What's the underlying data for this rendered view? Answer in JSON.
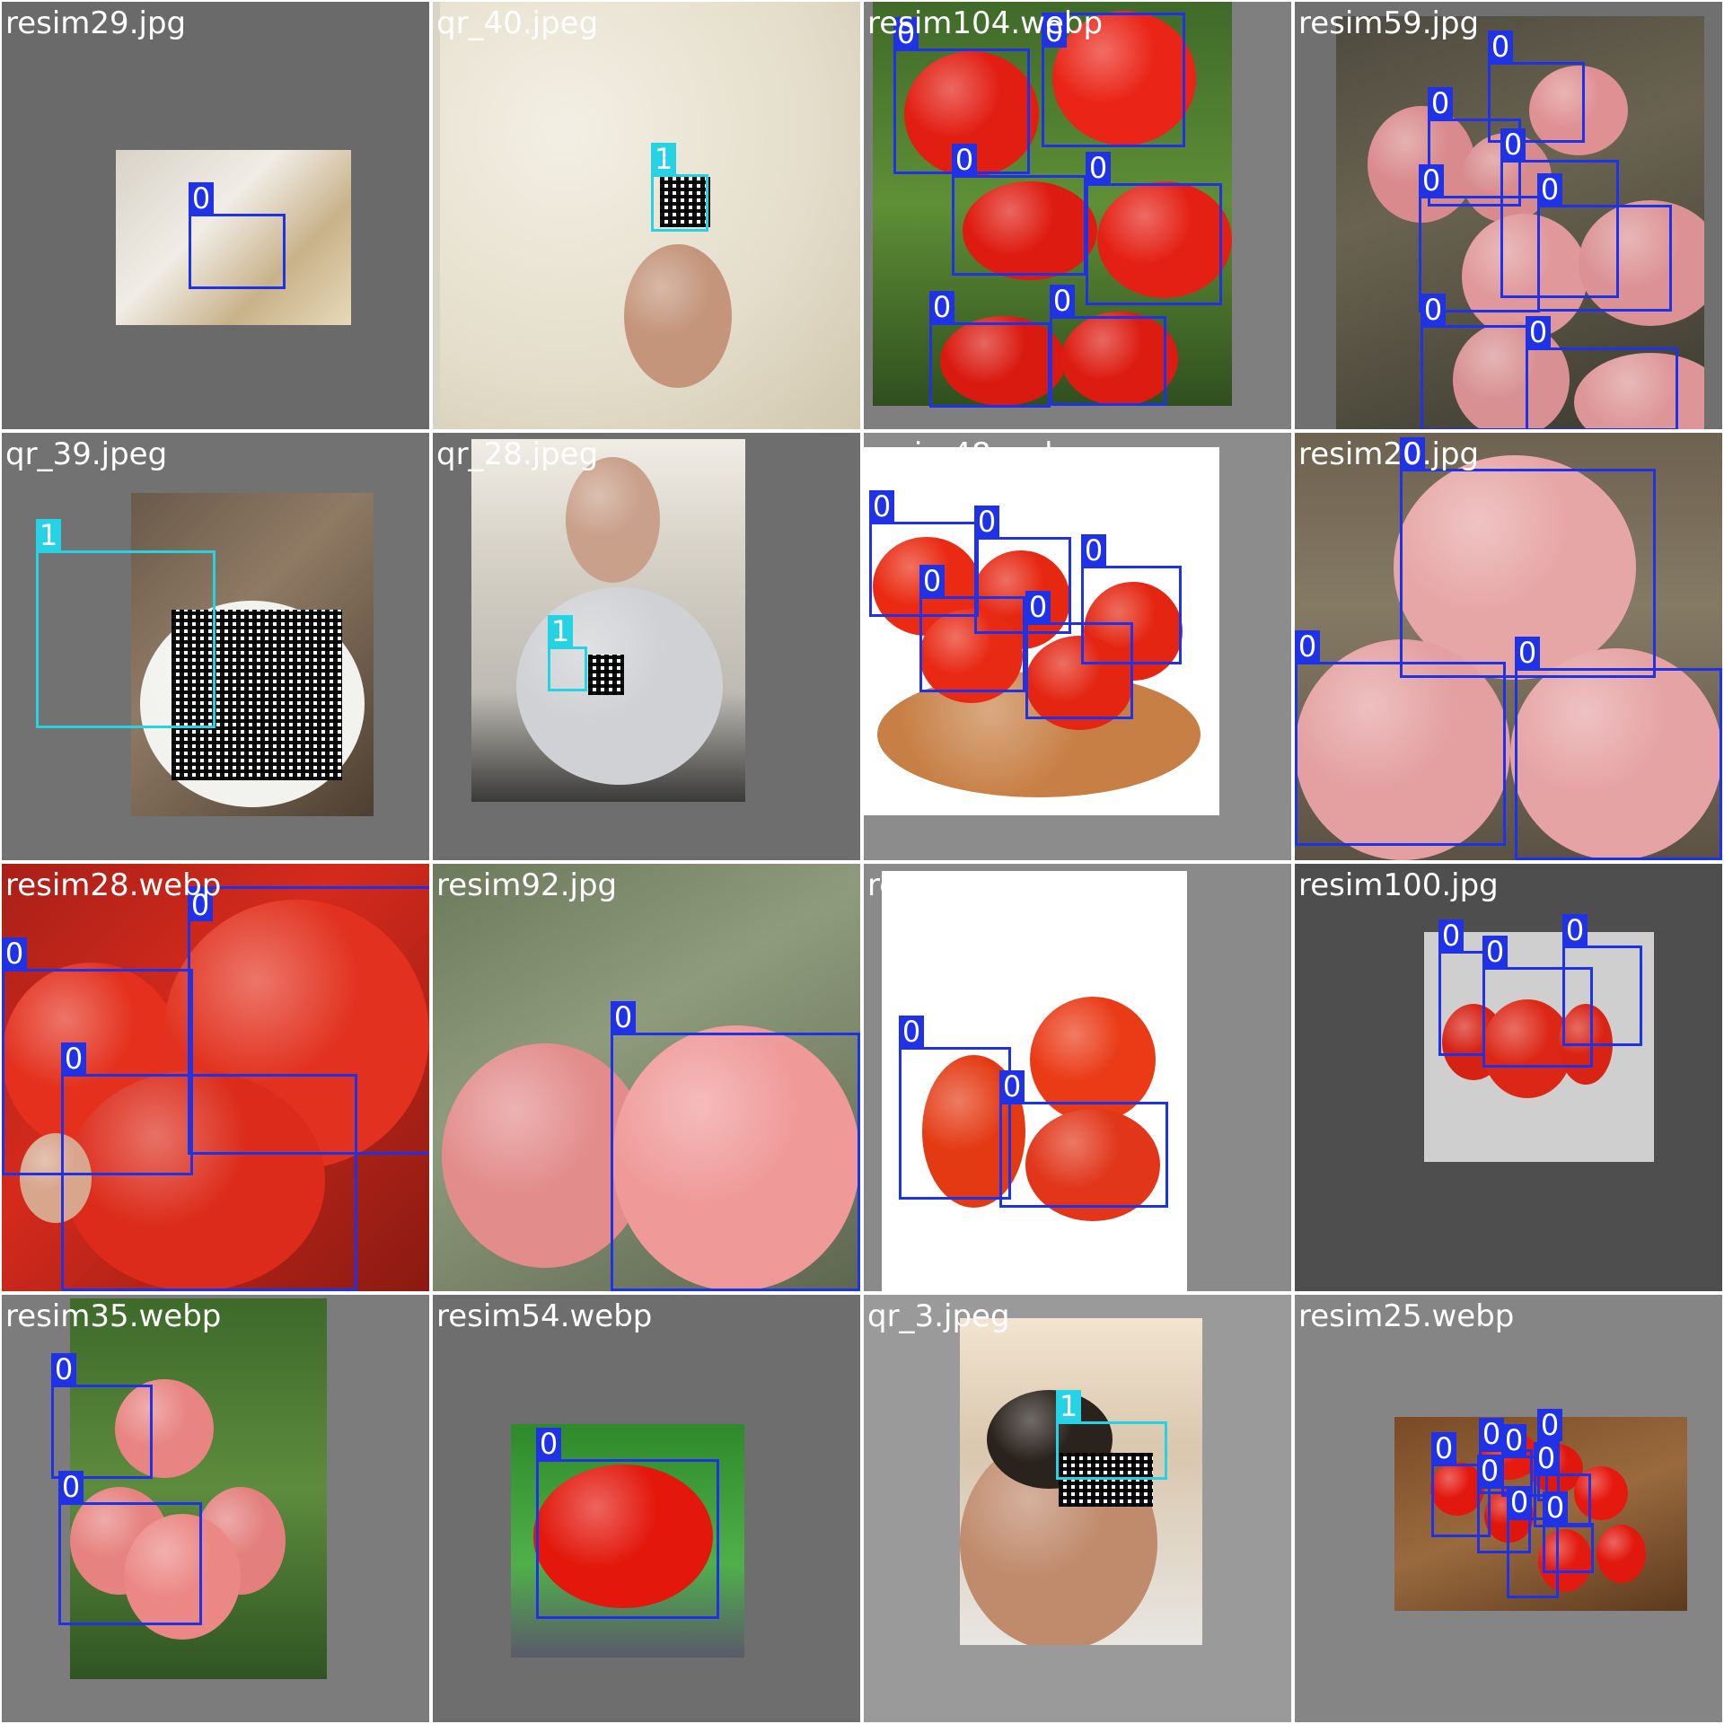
{
  "colors": {
    "tomato_box": "#1f32e6",
    "qr_box": "#25d3e4",
    "label_text": "#ffffff"
  },
  "tiles": [
    {
      "filename": "resim29.jpg",
      "labels": [
        "0"
      ]
    },
    {
      "filename": "qr_40.jpeg",
      "labels": [
        "1"
      ]
    },
    {
      "filename": "resim104.webp",
      "labels": [
        "0",
        "0",
        "0",
        "0",
        "0",
        "0"
      ]
    },
    {
      "filename": "resim59.jpg",
      "labels": [
        "0",
        "0",
        "0",
        "0",
        "0",
        "0",
        "0"
      ]
    },
    {
      "filename": "qr_39.jpeg",
      "labels": [
        "1"
      ]
    },
    {
      "filename": "qr_28.jpeg",
      "labels": [
        "1"
      ]
    },
    {
      "filename": "resim48.webp",
      "labels": [
        "0",
        "0",
        "0",
        "0",
        "0"
      ]
    },
    {
      "filename": "resim20.jpg",
      "labels": [
        "0",
        "0",
        "0"
      ]
    },
    {
      "filename": "resim28.webp",
      "labels": [
        "0",
        "0",
        "0"
      ]
    },
    {
      "filename": "resim92.jpg",
      "labels": [
        "0"
      ]
    },
    {
      "filename": "resim4.jpg",
      "labels": [
        "0",
        "0"
      ]
    },
    {
      "filename": "resim100.jpg",
      "labels": [
        "0",
        "0",
        "0"
      ]
    },
    {
      "filename": "resim35.webp",
      "labels": [
        "0",
        "0"
      ]
    },
    {
      "filename": "resim54.webp",
      "labels": [
        "0"
      ]
    },
    {
      "filename": "qr_3.jpeg",
      "labels": [
        "1"
      ]
    },
    {
      "filename": "resim25.webp",
      "labels": [
        "0",
        "0",
        "0",
        "0",
        "0",
        "0",
        "0",
        "0"
      ]
    }
  ]
}
